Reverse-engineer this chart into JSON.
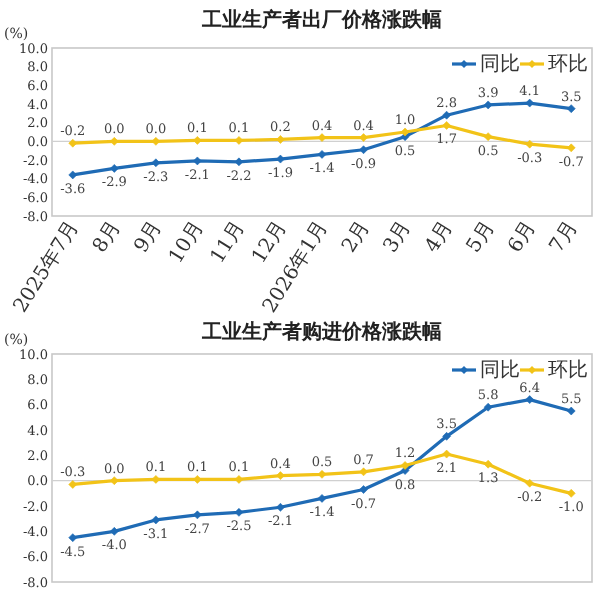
{
  "chart_data": [
    {
      "type": "line",
      "title": "工业生产者出厂价格涨跌幅",
      "ylabel": "(%)",
      "categories": [
        "2025年7月",
        "8月",
        "9月",
        "10月",
        "11月",
        "12月",
        "2026年1月",
        "2月",
        "3月",
        "4月",
        "5月",
        "6月",
        "7月"
      ],
      "series": [
        {
          "name": "同比",
          "color": "#1f6bb5",
          "values": [
            -3.6,
            -2.9,
            -2.3,
            -2.1,
            -2.2,
            -1.9,
            -1.4,
            -0.9,
            0.5,
            2.8,
            3.9,
            4.1,
            3.5
          ],
          "value_labels": [
            "-3.6",
            "-2.9",
            "-2.3",
            "-2.1",
            "-2.2",
            "-1.9",
            "-1.4",
            "-0.9",
            "0.5",
            "2.8",
            "3.9",
            "4.1",
            "3.5"
          ]
        },
        {
          "name": "环比",
          "color": "#f2c318",
          "values": [
            -0.2,
            0.0,
            0.0,
            0.1,
            0.1,
            0.2,
            0.4,
            0.4,
            1.0,
            1.7,
            0.5,
            -0.3,
            -0.7
          ],
          "value_labels": [
            "-0.2",
            "0.0",
            "0.0",
            "0.1",
            "0.1",
            "0.2",
            "0.4",
            "0.4",
            "1.0",
            "1.7",
            "0.5",
            "-0.3",
            "-0.7"
          ]
        }
      ],
      "ylim": [
        -8,
        10
      ],
      "yticks": [
        {
          "value": -8,
          "label": "-8.0"
        },
        {
          "value": -6,
          "label": "-6.0"
        },
        {
          "value": -4,
          "label": "-4.0"
        },
        {
          "value": -2,
          "label": "-2.0"
        },
        {
          "value": 0,
          "label": "0.0"
        },
        {
          "value": 2,
          "label": "2.0"
        },
        {
          "value": 4,
          "label": "4.0"
        },
        {
          "value": 6,
          "label": "6.0"
        },
        {
          "value": 8,
          "label": "8.0"
        },
        {
          "value": 10,
          "label": "10.0"
        }
      ],
      "legend": "top right",
      "marker": "diamond"
    },
    {
      "type": "line",
      "title": "工业生产者购进价格涨跌幅",
      "ylabel": "(%)",
      "categories": [
        null,
        null,
        null,
        null,
        null,
        null,
        null,
        null,
        null,
        null,
        null,
        null,
        null
      ],
      "series": [
        {
          "name": "同比",
          "color": "#1f6bb5",
          "values": [
            -4.5,
            -4.0,
            -3.1,
            -2.7,
            -2.5,
            -2.1,
            -1.4,
            -0.7,
            0.8,
            3.5,
            5.8,
            6.4,
            5.5
          ],
          "value_labels": [
            "-4.5",
            "-4.0",
            "-3.1",
            "-2.7",
            "-2.5",
            "-2.1",
            "-1.4",
            "-0.7",
            "0.8",
            "3.5",
            "5.8",
            "6.4",
            "5.5"
          ]
        },
        {
          "name": "环比",
          "color": "#f2c318",
          "values": [
            -0.3,
            0.0,
            0.1,
            0.1,
            0.1,
            0.4,
            0.5,
            0.7,
            1.2,
            2.1,
            1.3,
            -0.2,
            -1.0
          ],
          "value_labels": [
            "-0.3",
            "0.0",
            "0.1",
            "0.1",
            "0.1",
            "0.4",
            "0.5",
            "0.7",
            "1.2",
            "2.1",
            "1.3",
            "-0.2",
            "-1.0"
          ]
        }
      ],
      "ylim": [
        -8,
        10
      ],
      "yticks": [
        {
          "value": -8,
          "label": "-8.0"
        },
        {
          "value": -6,
          "label": "-6.0"
        },
        {
          "value": -4,
          "label": "-4.0"
        },
        {
          "value": -2,
          "label": "-2.0"
        },
        {
          "value": 0,
          "label": "0.0"
        },
        {
          "value": 2,
          "label": "2.0"
        },
        {
          "value": 4,
          "label": "4.0"
        },
        {
          "value": 6,
          "label": "6.0"
        },
        {
          "value": 8,
          "label": "8.0"
        },
        {
          "value": 10,
          "label": "10.0"
        }
      ],
      "legend": "top right",
      "marker": "diamond",
      "tick_labels": "y"
    }
  ]
}
